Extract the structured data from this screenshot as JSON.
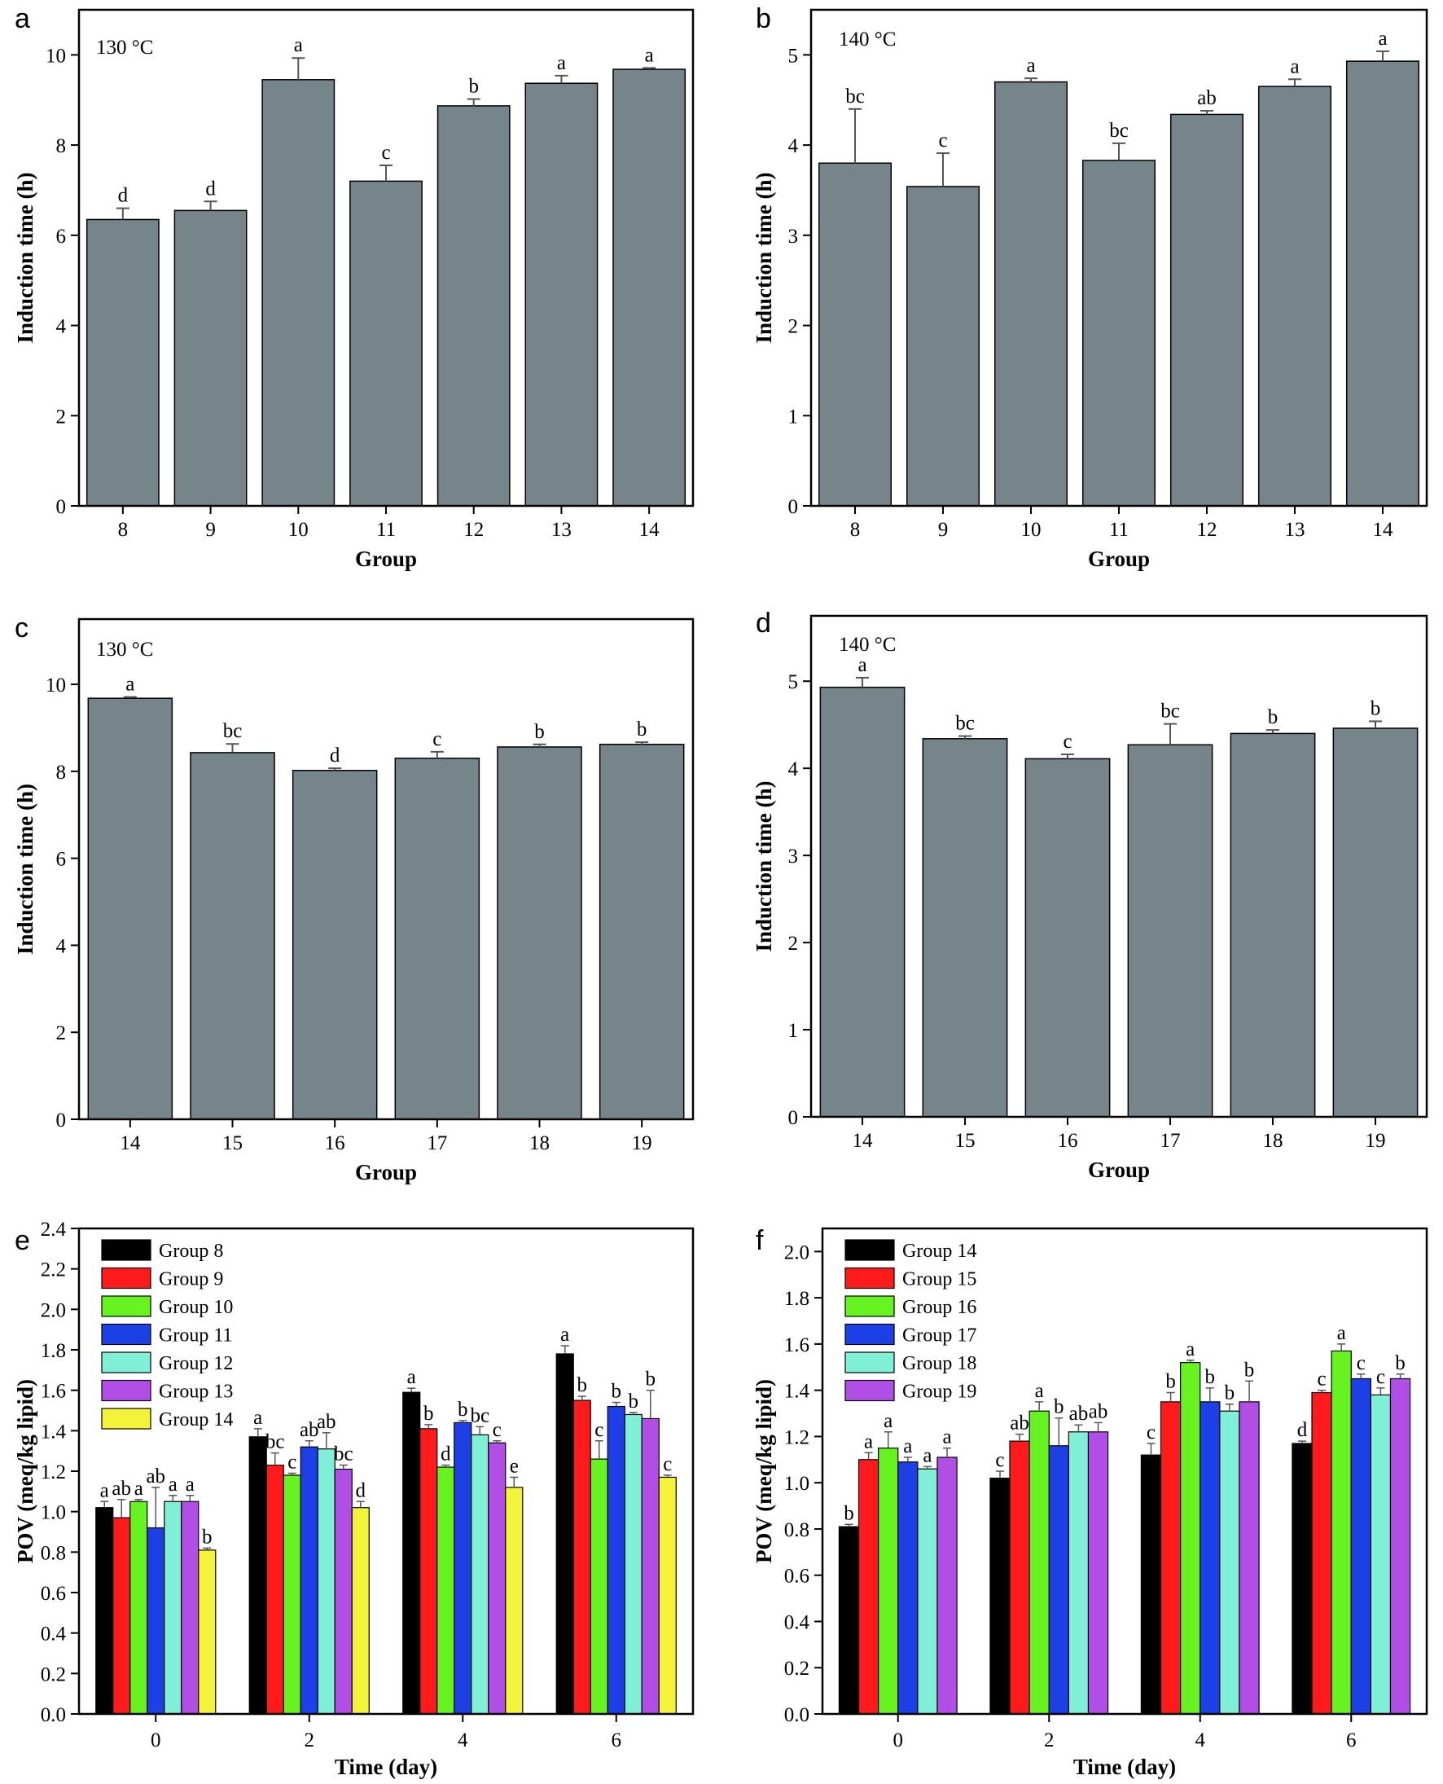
{
  "colors": {
    "gray_bar": "#75858a",
    "group_8": "#000000",
    "group_9": "#ff1b1b",
    "group_10": "#66f31f",
    "group_11": "#1c3fe6",
    "group_12": "#7ff0d6",
    "group_13": "#b04ee6",
    "group_14": "#f3f33a",
    "group_15": "#ff1b1b",
    "group_16": "#66f31f",
    "group_17": "#1c3fe6",
    "group_18": "#7ff0d6",
    "group_19": "#b04ee6"
  },
  "chart_data": [
    {
      "panel": "a",
      "type": "bar",
      "annotation": "130 °C",
      "xlabel": "Group",
      "ylabel": "Induction time (h)",
      "ylim": [
        0,
        11
      ],
      "yticks": [
        0,
        2,
        4,
        6,
        8,
        10
      ],
      "categories": [
        "8",
        "9",
        "10",
        "11",
        "12",
        "13",
        "14"
      ],
      "values": [
        6.35,
        6.55,
        9.45,
        7.2,
        8.87,
        9.37,
        9.68
      ],
      "errors": [
        0.25,
        0.2,
        0.48,
        0.35,
        0.15,
        0.17,
        0.03
      ],
      "significance": [
        "d",
        "d",
        "a",
        "c",
        "b",
        "a",
        "a"
      ],
      "grid": false
    },
    {
      "panel": "b",
      "type": "bar",
      "annotation": "140 °C",
      "xlabel": "Group",
      "ylabel": "Induction time (h)",
      "ylim": [
        0,
        5.5
      ],
      "yticks": [
        0,
        1,
        2,
        3,
        4,
        5
      ],
      "categories": [
        "8",
        "9",
        "10",
        "11",
        "12",
        "13",
        "14"
      ],
      "values": [
        3.8,
        3.54,
        4.7,
        3.83,
        4.34,
        4.65,
        4.93
      ],
      "errors": [
        0.6,
        0.37,
        0.04,
        0.19,
        0.04,
        0.08,
        0.11
      ],
      "significance": [
        "bc",
        "c",
        "a",
        "bc",
        "ab",
        "a",
        "a"
      ],
      "grid": false
    },
    {
      "panel": "c",
      "type": "bar",
      "annotation": "130 °C",
      "xlabel": "Group",
      "ylabel": "Induction time (h)",
      "ylim": [
        0,
        11.5
      ],
      "yticks": [
        0,
        2,
        4,
        6,
        8,
        10
      ],
      "categories": [
        "14",
        "15",
        "16",
        "17",
        "18",
        "19"
      ],
      "values": [
        9.68,
        8.43,
        8.02,
        8.3,
        8.56,
        8.62
      ],
      "errors": [
        0.03,
        0.2,
        0.05,
        0.15,
        0.06,
        0.05
      ],
      "significance": [
        "a",
        "bc",
        "d",
        "c",
        "b",
        "b"
      ],
      "grid": false
    },
    {
      "panel": "d",
      "type": "bar",
      "annotation": "140 °C",
      "xlabel": "Group",
      "ylabel": "Induction time (h)",
      "ylim": [
        0,
        5.75
      ],
      "yticks": [
        0,
        1,
        2,
        3,
        4,
        5
      ],
      "categories": [
        "14",
        "15",
        "16",
        "17",
        "18",
        "19"
      ],
      "values": [
        4.93,
        4.34,
        4.11,
        4.27,
        4.4,
        4.46
      ],
      "errors": [
        0.11,
        0.03,
        0.05,
        0.24,
        0.04,
        0.08
      ],
      "significance": [
        "a",
        "bc",
        "c",
        "bc",
        "b",
        "b"
      ],
      "grid": false
    },
    {
      "panel": "e",
      "type": "bar",
      "xlabel": "Time (day)",
      "ylabel": "POV (meq/kg lipid)",
      "ylim": [
        0,
        2.4
      ],
      "yticks": [
        0.0,
        0.2,
        0.4,
        0.6,
        0.8,
        1.0,
        1.2,
        1.4,
        1.6,
        1.8,
        2.0,
        2.2,
        2.4
      ],
      "categories": [
        "0",
        "2",
        "4",
        "6"
      ],
      "legend": "top-left",
      "series": [
        {
          "name": "Group 8",
          "color_key": "group_8",
          "values": [
            1.02,
            1.37,
            1.59,
            1.78
          ],
          "errors": [
            0.03,
            0.04,
            0.02,
            0.04
          ],
          "significance": [
            "a",
            "a",
            "a",
            "a"
          ]
        },
        {
          "name": "Group 9",
          "color_key": "group_9",
          "values": [
            0.97,
            1.23,
            1.41,
            1.55
          ],
          "errors": [
            0.09,
            0.06,
            0.02,
            0.02
          ],
          "significance": [
            "ab",
            "bc",
            "b",
            "b"
          ]
        },
        {
          "name": "Group 10",
          "color_key": "group_10",
          "values": [
            1.05,
            1.18,
            1.22,
            1.26
          ],
          "errors": [
            0.01,
            0.01,
            0.01,
            0.09
          ],
          "significance": [
            "a",
            "c",
            "d",
            "c"
          ]
        },
        {
          "name": "Group 11",
          "color_key": "group_11",
          "values": [
            0.92,
            1.32,
            1.44,
            1.52
          ],
          "errors": [
            0.2,
            0.03,
            0.01,
            0.02
          ],
          "significance": [
            "ab",
            "ab",
            "b",
            "b"
          ]
        },
        {
          "name": "Group 12",
          "color_key": "group_12",
          "values": [
            1.05,
            1.31,
            1.38,
            1.48
          ],
          "errors": [
            0.03,
            0.08,
            0.04,
            0.01
          ],
          "significance": [
            "a",
            "ab",
            "bc",
            "b"
          ]
        },
        {
          "name": "Group 13",
          "color_key": "group_13",
          "values": [
            1.05,
            1.21,
            1.34,
            1.46
          ],
          "errors": [
            0.03,
            0.02,
            0.01,
            0.14
          ],
          "significance": [
            "a",
            "bc",
            "c",
            "b"
          ]
        },
        {
          "name": "Group 14",
          "color_key": "group_14",
          "values": [
            0.81,
            1.02,
            1.12,
            1.17
          ],
          "errors": [
            0.01,
            0.03,
            0.05,
            0.01
          ],
          "significance": [
            "b",
            "d",
            "e",
            "c"
          ]
        }
      ],
      "grid": false
    },
    {
      "panel": "f",
      "type": "bar",
      "xlabel": "Time (day)",
      "ylabel": "POV (meq/kg lipid)",
      "ylim": [
        0,
        2.1
      ],
      "yticks": [
        0.0,
        0.2,
        0.4,
        0.6,
        0.8,
        1.0,
        1.2,
        1.4,
        1.6,
        1.8,
        2.0
      ],
      "categories": [
        "0",
        "2",
        "4",
        "6"
      ],
      "legend": "top-left",
      "series": [
        {
          "name": "Group 14",
          "color_key": "group_8",
          "values": [
            0.81,
            1.02,
            1.12,
            1.17
          ],
          "errors": [
            0.01,
            0.03,
            0.05,
            0.01
          ],
          "significance": [
            "b",
            "c",
            "c",
            "d"
          ]
        },
        {
          "name": "Group 15",
          "color_key": "group_15",
          "values": [
            1.1,
            1.18,
            1.35,
            1.39
          ],
          "errors": [
            0.03,
            0.03,
            0.04,
            0.01
          ],
          "significance": [
            "a",
            "ab",
            "b",
            "c"
          ]
        },
        {
          "name": "Group 16",
          "color_key": "group_16",
          "values": [
            1.15,
            1.31,
            1.52,
            1.57
          ],
          "errors": [
            0.07,
            0.04,
            0.01,
            0.03
          ],
          "significance": [
            "a",
            "a",
            "a",
            "a"
          ]
        },
        {
          "name": "Group 17",
          "color_key": "group_17",
          "values": [
            1.09,
            1.16,
            1.35,
            1.45
          ],
          "errors": [
            0.02,
            0.12,
            0.06,
            0.02
          ],
          "significance": [
            "a",
            "b",
            "b",
            "c"
          ]
        },
        {
          "name": "Group 18",
          "color_key": "group_18",
          "values": [
            1.06,
            1.22,
            1.31,
            1.38
          ],
          "errors": [
            0.01,
            0.03,
            0.03,
            0.03
          ],
          "significance": [
            "a",
            "ab",
            "b",
            "c"
          ]
        },
        {
          "name": "Group 19",
          "color_key": "group_19",
          "values": [
            1.11,
            1.22,
            1.35,
            1.45
          ],
          "errors": [
            0.04,
            0.04,
            0.09,
            0.02
          ],
          "significance": [
            "a",
            "ab",
            "b",
            "b"
          ]
        }
      ],
      "grid": false
    }
  ]
}
